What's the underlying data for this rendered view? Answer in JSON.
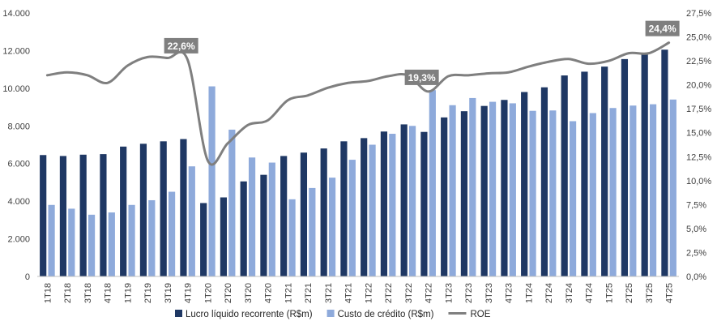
{
  "chart_data": {
    "type": "bar",
    "title": "",
    "xlabel": "",
    "ylabel": "",
    "categories": [
      "1T18",
      "2T18",
      "3T18",
      "4T18",
      "1T19",
      "2T19",
      "3T19",
      "4T19",
      "1T20",
      "2T20",
      "3T20",
      "4T20",
      "1T21",
      "2T21",
      "3T21",
      "4T21",
      "1T22",
      "2T22",
      "3T22",
      "4T22",
      "1T23",
      "2T23",
      "3T23",
      "4T23",
      "1T24",
      "2T24",
      "3T24",
      "4T24",
      "1T25",
      "2T25",
      "3T25",
      "4T25"
    ],
    "ylim": [
      0,
      14000
    ],
    "ylim_right": [
      0,
      27.5
    ],
    "y_ticks": [
      "0",
      "2.000",
      "4.000",
      "6.000",
      "8.000",
      "10.000",
      "12.000",
      "14.000"
    ],
    "y_ticks_right": [
      "0,0%",
      "2,5%",
      "5,0%",
      "7,5%",
      "10,0%",
      "12,5%",
      "15,0%",
      "17,5%",
      "20,0%",
      "22,5%",
      "25,0%",
      "27,5%"
    ],
    "series": [
      {
        "name": "Lucro líquido recorrente (R$m)",
        "kind": "bar",
        "axis": "left",
        "color": "#1f3864",
        "values": [
          6450,
          6400,
          6470,
          6500,
          6900,
          7050,
          7180,
          7300,
          3900,
          4200,
          5050,
          5400,
          6400,
          6580,
          6800,
          7180,
          7350,
          7700,
          8080,
          7680,
          8450,
          8780,
          9060,
          9380,
          9800,
          10050,
          10680,
          10880,
          11150,
          11550,
          11850,
          12050
        ]
      },
      {
        "name": "Custo de crédito (R$m)",
        "kind": "bar",
        "axis": "left",
        "color": "#8eaadb",
        "values": [
          3800,
          3600,
          3280,
          3400,
          3800,
          4050,
          4500,
          5850,
          10100,
          7800,
          6320,
          6050,
          4100,
          4700,
          5250,
          6200,
          7000,
          7580,
          8000,
          9900,
          9100,
          9480,
          9280,
          9200,
          8800,
          8820,
          8250,
          8680,
          8950,
          9080,
          9150,
          9400
        ]
      },
      {
        "name": "ROE",
        "kind": "line",
        "axis": "right",
        "color": "#7f7f7f",
        "values": [
          21.0,
          21.3,
          21.0,
          20.2,
          22.0,
          22.9,
          22.8,
          22.6,
          12.1,
          13.9,
          15.8,
          16.3,
          18.4,
          18.9,
          19.7,
          20.2,
          20.4,
          20.9,
          21.0,
          19.3,
          20.9,
          21.0,
          21.2,
          21.3,
          21.9,
          22.4,
          22.7,
          22.2,
          22.5,
          23.3,
          23.3,
          24.4
        ]
      }
    ],
    "annotations": [
      {
        "category": "4T19",
        "label": "22,6%"
      },
      {
        "category": "4T22",
        "label": "19,3%"
      },
      {
        "category": "4T25",
        "label": "24,4%"
      }
    ],
    "legend_position": "bottom-center",
    "grid": false
  }
}
